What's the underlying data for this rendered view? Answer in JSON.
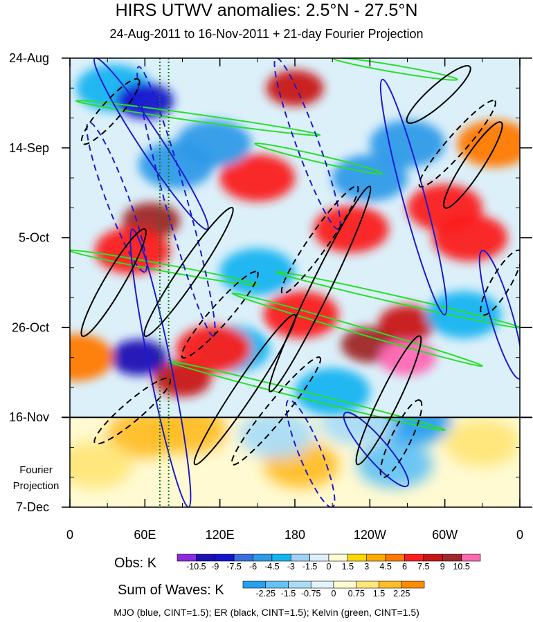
{
  "title": "HIRS UTWV anomalies: 2.5°N - 27.5°N",
  "subtitle": "24-Aug-2011 to 16-Nov-2011 + 21-day Fourier Projection",
  "projection_label_line1": "Fourier",
  "projection_label_line2": "Projection",
  "footer": "MJO (blue, CINT=1.5); ER (black, CINT=1.5); Kelvin (green, CINT=1.5)",
  "chart_data": {
    "type": "heatmap",
    "title": "HIRS UTWV anomalies: 2.5°N - 27.5°N",
    "subtitle": "24-Aug-2011 to 16-Nov-2011 + 21-day Fourier Projection",
    "x_axis": {
      "ticks": [
        {
          "lon": 0,
          "label": "0"
        },
        {
          "lon": 60,
          "label": "60E"
        },
        {
          "lon": 120,
          "label": "120E"
        },
        {
          "lon": 180,
          "label": "180"
        },
        {
          "lon": 240,
          "label": "120W"
        },
        {
          "lon": 300,
          "label": "60W"
        },
        {
          "lon": 360,
          "label": "0"
        }
      ],
      "range": [
        0,
        360
      ]
    },
    "y_axis": {
      "ticks": [
        {
          "day": 0,
          "label": "24-Aug"
        },
        {
          "day": 21,
          "label": "14-Sep"
        },
        {
          "day": 42,
          "label": "5-Oct"
        },
        {
          "day": 63,
          "label": "26-Oct"
        },
        {
          "day": 84,
          "label": "16-Nov"
        },
        {
          "day": 105,
          "label": "7-Dec"
        }
      ],
      "range": [
        0,
        105
      ],
      "observation_end_day": 84
    },
    "reference_lines": [
      {
        "lon": 72,
        "style": "dotted",
        "color": "#1a7a1a"
      },
      {
        "lon": 79,
        "style": "dotted",
        "color": "#1a7a1a"
      }
    ],
    "obs_colorbar": {
      "label": "Obs: K",
      "levels": [
        "-10.5",
        "-9",
        "-7.5",
        "-6",
        "-4.5",
        "-3",
        "-1.5",
        "0",
        "1.5",
        "3",
        "4.5",
        "6",
        "7.5",
        "9",
        "10.5"
      ],
      "colors": [
        "#8a2be2",
        "#1e0fb4",
        "#1414cd",
        "#3a6ee0",
        "#2e9ae8",
        "#14b4f0",
        "#a0d2f5",
        "#dcf0fa",
        "#fffcd2",
        "#ffd700",
        "#ffaa00",
        "#ff7800",
        "#fa1e1e",
        "#c81414",
        "#a02828",
        "#ff69b4"
      ]
    },
    "waves_colorbar": {
      "label": "Sum of Waves: K",
      "levels": [
        "-2.25",
        "-1.5",
        "-0.75",
        "0",
        "0.75",
        "1.5",
        "2.25"
      ],
      "colors": [
        "#28a0f0",
        "#64c3f5",
        "#aadcf8",
        "#e1f5fc",
        "#fffad2",
        "#ffe678",
        "#ffbe28",
        "#ff8c00"
      ]
    },
    "contour_series": [
      {
        "name": "MJO",
        "color": "blue",
        "cint": 1.5
      },
      {
        "name": "ER",
        "color": "black",
        "cint": 1.5
      },
      {
        "name": "Kelvin",
        "color": "green",
        "cint": 1.5
      }
    ],
    "wave_features": [
      {
        "series": "Kelvin",
        "lon0": 5,
        "day0": 10,
        "lon1": 200,
        "day1": 18,
        "sign": 1
      },
      {
        "series": "Kelvin",
        "lon0": 148,
        "day0": 20,
        "lon1": 250,
        "day1": 27,
        "sign": 1
      },
      {
        "series": "Kelvin",
        "lon0": 0,
        "day0": 45,
        "lon1": 150,
        "day1": 53,
        "sign": 1
      },
      {
        "series": "Kelvin",
        "lon0": 165,
        "day0": 50,
        "lon1": 360,
        "day1": 63,
        "sign": 1
      },
      {
        "series": "Kelvin",
        "lon0": 80,
        "day0": 71,
        "lon1": 300,
        "day1": 87,
        "sign": 1
      },
      {
        "series": "Kelvin",
        "lon0": 130,
        "day0": 55,
        "lon1": 330,
        "day1": 72,
        "sign": 1
      },
      {
        "series": "Kelvin",
        "lon0": 210,
        "day0": 0,
        "lon1": 310,
        "day1": 5,
        "sign": 1
      },
      {
        "series": "MJO",
        "lon0": 20,
        "day0": 0,
        "lon1": 110,
        "day1": 40,
        "sign": 1
      },
      {
        "series": "MJO",
        "lon0": 50,
        "day0": 40,
        "lon1": 95,
        "day1": 105,
        "sign": 1
      },
      {
        "series": "MJO",
        "lon0": 220,
        "day0": 83,
        "lon1": 270,
        "day1": 100,
        "sign": 1
      },
      {
        "series": "MJO",
        "lon0": 250,
        "day0": 5,
        "lon1": 300,
        "day1": 60,
        "sign": 1
      },
      {
        "series": "MJO",
        "lon0": 330,
        "day0": 45,
        "lon1": 360,
        "day1": 75,
        "sign": 1
      },
      {
        "series": "MJO",
        "lon0": 165,
        "day0": 0,
        "lon1": 215,
        "day1": 40,
        "sign": -1
      },
      {
        "series": "MJO",
        "lon0": 55,
        "day0": 2,
        "lon1": 115,
        "day1": 65,
        "sign": -1
      },
      {
        "series": "MJO",
        "lon0": 175,
        "day0": 80,
        "lon1": 210,
        "day1": 105,
        "sign": -1
      },
      {
        "series": "MJO",
        "lon0": 15,
        "day0": 15,
        "lon1": 60,
        "day1": 50,
        "sign": -1
      },
      {
        "series": "ER",
        "lon0": 270,
        "day0": 15,
        "lon1": 320,
        "day1": 2,
        "sign": 1
      },
      {
        "series": "ER",
        "lon0": 60,
        "day0": 65,
        "lon1": 130,
        "day1": 35,
        "sign": 1
      },
      {
        "series": "ER",
        "lon0": 160,
        "day0": 78,
        "lon1": 240,
        "day1": 30,
        "sign": 1
      },
      {
        "series": "ER",
        "lon0": 100,
        "day0": 95,
        "lon1": 180,
        "day1": 60,
        "sign": 1
      },
      {
        "series": "ER",
        "lon0": 10,
        "day0": 65,
        "lon1": 60,
        "day1": 40,
        "sign": 1
      },
      {
        "series": "ER",
        "lon0": 230,
        "day0": 95,
        "lon1": 280,
        "day1": 65,
        "sign": 1
      },
      {
        "series": "ER",
        "lon0": 300,
        "day0": 35,
        "lon1": 345,
        "day1": 15,
        "sign": 1
      },
      {
        "series": "ER",
        "lon0": 10,
        "day0": 20,
        "lon1": 55,
        "day1": 5,
        "sign": -1
      },
      {
        "series": "ER",
        "lon0": 90,
        "day0": 70,
        "lon1": 150,
        "day1": 50,
        "sign": -1
      },
      {
        "series": "ER",
        "lon0": 130,
        "day0": 95,
        "lon1": 200,
        "day1": 70,
        "sign": -1
      },
      {
        "series": "ER",
        "lon0": 170,
        "day0": 55,
        "lon1": 230,
        "day1": 30,
        "sign": -1
      },
      {
        "series": "ER",
        "lon0": 280,
        "day0": 30,
        "lon1": 340,
        "day1": 10,
        "sign": -1
      },
      {
        "series": "ER",
        "lon0": 250,
        "day0": 98,
        "lon1": 280,
        "day1": 80,
        "sign": -1
      },
      {
        "series": "ER",
        "lon0": 330,
        "day0": 60,
        "lon1": 360,
        "day1": 45,
        "sign": -1
      },
      {
        "series": "ER",
        "lon0": 20,
        "day0": 90,
        "lon1": 80,
        "day1": 75,
        "sign": -1
      }
    ],
    "anomaly_features": [
      {
        "lon": 65,
        "day": 38,
        "value": 9
      },
      {
        "lon": 50,
        "day": 45,
        "value": 6
      },
      {
        "lon": 180,
        "day": 7,
        "value": 7.5
      },
      {
        "lon": 240,
        "day": 67,
        "value": 9
      },
      {
        "lon": 270,
        "day": 70,
        "value": 10.5
      },
      {
        "lon": 270,
        "day": 62,
        "value": 7.5
      },
      {
        "lon": 185,
        "day": 60,
        "value": 6
      },
      {
        "lon": 90,
        "day": 75,
        "value": 7.5
      },
      {
        "lon": 150,
        "day": 28,
        "value": 6
      },
      {
        "lon": 300,
        "day": 35,
        "value": 6
      },
      {
        "lon": 320,
        "day": 42,
        "value": 6
      },
      {
        "lon": 35,
        "day": 7,
        "value": -4.5
      },
      {
        "lon": 55,
        "day": 70,
        "value": -10.5
      },
      {
        "lon": 60,
        "day": 10,
        "value": -9
      },
      {
        "lon": 85,
        "day": 25,
        "value": -6
      },
      {
        "lon": 115,
        "day": 20,
        "value": -6
      },
      {
        "lon": 240,
        "day": 28,
        "value": -6
      },
      {
        "lon": 275,
        "day": 85,
        "value": -4.5
      },
      {
        "lon": 270,
        "day": 20,
        "value": -6
      },
      {
        "lon": 315,
        "day": 60,
        "value": -4.5
      },
      {
        "lon": 130,
        "day": 68,
        "value": -4.5
      },
      {
        "lon": 210,
        "day": 78,
        "value": -4.5
      },
      {
        "lon": 150,
        "day": 50,
        "value": -4.5
      },
      {
        "lon": 5,
        "day": 70,
        "value": 4.5
      },
      {
        "lon": 340,
        "day": 20,
        "value": 4.5
      },
      {
        "lon": 115,
        "day": 68,
        "value": 6
      },
      {
        "lon": 225,
        "day": 40,
        "value": 6
      },
      {
        "lon": 60,
        "day": 88,
        "value": 1.5
      },
      {
        "lon": 95,
        "day": 87,
        "value": 1.5
      },
      {
        "lon": 185,
        "day": 95,
        "value": 1.5
      },
      {
        "lon": 165,
        "day": 88,
        "value": -1.5
      },
      {
        "lon": 260,
        "day": 95,
        "value": -2.25
      },
      {
        "lon": 230,
        "day": 85,
        "value": -1.5
      },
      {
        "lon": 330,
        "day": 90,
        "value": 0.75
      },
      {
        "lon": 20,
        "day": 95,
        "value": 0.75
      }
    ]
  }
}
